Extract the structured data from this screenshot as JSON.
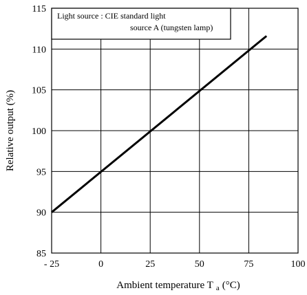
{
  "chart_data": {
    "type": "line",
    "xlabel": "Ambient temperature T",
    "xlabel_subscript": "a",
    "xlabel_unit": "(°C)",
    "ylabel": "Relative output (%)",
    "xlim": [
      -25,
      100
    ],
    "ylim": [
      85,
      115
    ],
    "x_ticks": [
      -25,
      0,
      25,
      50,
      75,
      100
    ],
    "x_tick_labels": [
      "- 25",
      "0",
      "25",
      "50",
      "75",
      "100"
    ],
    "y_ticks": [
      85,
      90,
      95,
      100,
      105,
      110,
      115
    ],
    "y_tick_labels": [
      "85",
      "90",
      "95",
      "100",
      "105",
      "110",
      "115"
    ],
    "grid": true,
    "annotation": {
      "line1": "Light source : CIE standard light",
      "line2": "source A (tungsten lamp)",
      "placement": "top-left"
    },
    "series": [
      {
        "x": [
          -25,
          84
        ],
        "y": [
          90,
          111.6
        ]
      }
    ]
  }
}
